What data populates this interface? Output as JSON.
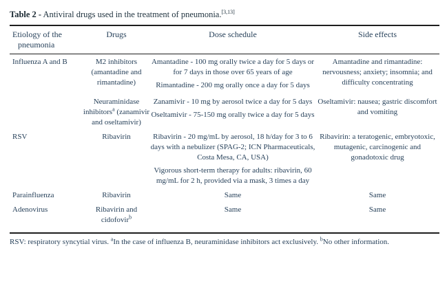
{
  "title": {
    "label": "Table 2 -",
    "text": " Antiviral drugs used in the treatment of pneumonia.",
    "citation": "[3,13]"
  },
  "header": {
    "etiology": "Etiology of the pneumonia",
    "drugs": "Drugs",
    "dose": "Dose schedule",
    "side": "Side effects"
  },
  "rows": [
    {
      "etiology": "Influenza A and B",
      "groups": [
        {
          "drug": "M2 inhibitors (amantadine and rimantadine)",
          "doses": [
            "Amantadine - 100 mg orally twice a day for 5 days or for 7 days in those over 65 years of age",
            "Rimantadine - 200 mg orally once a day for 5 days"
          ],
          "side": "Amantadine and rimantadine: nervousness; anxiety; insomnia; and difficulty concentrating"
        },
        {
          "drug": "Neuraminidase inhibitors",
          "drug_sup": "a",
          "drug_rest": " (zanamivir and oseltamivir)",
          "doses": [
            "Zanamivir - 10 mg by aerosol twice a day for 5 days",
            "Oseltamivir - 75-150 mg orally twice a day for 5 days"
          ],
          "side": "Oseltamivir: nausea; gastric discomfort and vomiting"
        }
      ]
    },
    {
      "etiology": "RSV",
      "groups": [
        {
          "drug": "Ribavirin",
          "doses": [
            "Ribavirin - 20 mg/mL by aerosol, 18 h/day for 3 to 6 days with a nebulizer (SPAG-2; ICN Pharmaceuticals, Costa Mesa, CA, USA)",
            "Vigorous short-term therapy for adults: ribavirin, 60 mg/mL for 2 h, provided via a mask, 3 times a day"
          ],
          "side": "Ribavirin: a teratogenic, embryotoxic, mutagenic, carcinogenic and gonadotoxic drug"
        }
      ]
    },
    {
      "etiology": "Parainfluenza",
      "groups": [
        {
          "drug": "Ribavirin",
          "doses": [
            "Same"
          ],
          "side": "Same"
        }
      ]
    },
    {
      "etiology": "Adenovirus",
      "groups": [
        {
          "drug": "Ribavirin and cidofovir",
          "drug_sup": "b",
          "doses": [
            "Same"
          ],
          "side": "Same"
        }
      ]
    }
  ],
  "footnote": {
    "part1": "RSV: respiratory syncytial virus. ",
    "sup1": "a",
    "part2": "In the case of influenza B, neuraminidase inhibitors act exclusively. ",
    "sup2": "b",
    "part3": "No other information."
  }
}
